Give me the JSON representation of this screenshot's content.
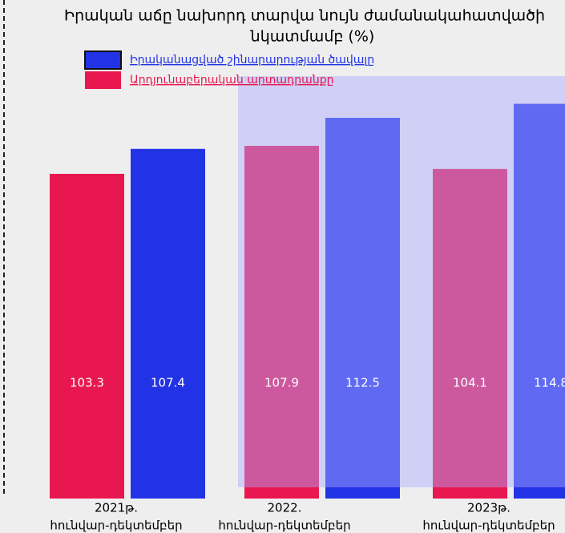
{
  "chart_data": {
    "type": "bar",
    "title": [
      "Իրական աճը նախորդ տարվա նույն ժամանակահատվածի",
      "նկատմամբ (%)"
    ],
    "categories": [
      [
        "2021թ.",
        "հունվար-դեկտեմբեր"
      ],
      [
        "2022.",
        "հունվար-դեկտեմբեր"
      ],
      [
        "2023թ.",
        "հունվար-դեկտեմբեր"
      ]
    ],
    "series": [
      {
        "name": "Արդյունաբերական արտադրանքը",
        "color": "#e8174f",
        "values": [
          103.3,
          107.9,
          104.1
        ]
      },
      {
        "name": "Իրականացված շինարարության ծավալը",
        "color": "#2233e6",
        "values": [
          107.4,
          112.5,
          114.8
        ]
      }
    ],
    "ylim": [
      50,
      120
    ]
  }
}
